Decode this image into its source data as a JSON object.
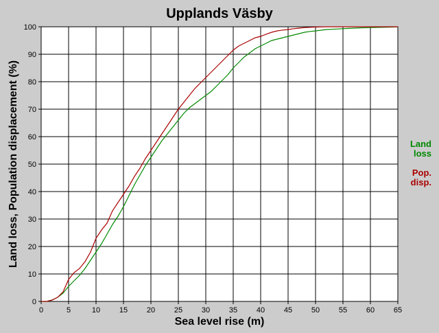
{
  "chart_data": {
    "type": "line",
    "title": "Upplands Väsby",
    "xlabel": "Sea level rise (m)",
    "ylabel": "Land loss, Population displacement (%)",
    "xlim": [
      0,
      65
    ],
    "ylim": [
      0,
      100
    ],
    "xticks": [
      0,
      5,
      10,
      15,
      20,
      25,
      30,
      35,
      40,
      45,
      50,
      55,
      60,
      65
    ],
    "yticks": [
      0,
      10,
      20,
      30,
      40,
      50,
      60,
      70,
      80,
      90,
      100
    ],
    "grid": true,
    "legend_position": "right",
    "series": [
      {
        "name": "Land loss",
        "legend_lines": [
          "Land",
          "loss"
        ],
        "color": "#008800",
        "x": [
          0,
          1,
          2,
          3,
          4,
          5,
          6,
          7,
          8,
          9,
          10,
          11,
          12,
          13,
          14,
          15,
          16,
          17,
          18,
          19,
          20,
          21,
          22,
          23,
          24,
          25,
          26,
          27,
          28,
          29,
          30,
          31,
          32,
          33,
          34,
          35,
          36,
          37,
          38,
          39,
          40,
          41,
          42,
          43,
          44,
          45,
          46,
          47,
          48,
          49,
          50,
          52,
          54,
          56,
          58,
          60,
          62,
          64,
          65
        ],
        "y": [
          0,
          0,
          0.5,
          1.5,
          3,
          5.5,
          7.5,
          9.5,
          12,
          15,
          18,
          21,
          24.5,
          28,
          31,
          34.5,
          38.5,
          42.5,
          46,
          49.5,
          52.5,
          55.5,
          58.5,
          61,
          63.5,
          66,
          68.5,
          70.5,
          72,
          73.5,
          75,
          76.5,
          78.5,
          80.5,
          82.5,
          85,
          87,
          89,
          90.5,
          92,
          93,
          94,
          95,
          95.5,
          96,
          96.5,
          97,
          97.5,
          98,
          98.3,
          98.5,
          99,
          99.2,
          99.4,
          99.6,
          99.7,
          99.8,
          99.9,
          100
        ]
      },
      {
        "name": "Pop. disp.",
        "legend_lines": [
          "Pop.",
          "disp."
        ],
        "color": "#aa0000",
        "x": [
          0,
          1,
          2,
          3,
          4,
          5,
          6,
          7,
          8,
          9,
          10,
          11,
          12,
          13,
          14,
          15,
          16,
          17,
          18,
          19,
          20,
          21,
          22,
          23,
          24,
          25,
          26,
          27,
          28,
          29,
          30,
          31,
          32,
          33,
          34,
          35,
          36,
          37,
          38,
          39,
          40,
          41,
          42,
          43,
          44,
          45,
          46,
          47,
          48,
          49,
          50,
          52,
          54,
          56,
          58,
          60,
          62,
          64,
          65
        ],
        "y": [
          0,
          0,
          0.5,
          1.5,
          3.5,
          8,
          10.5,
          12,
          14.5,
          18,
          23,
          26,
          28.5,
          33,
          36,
          39,
          42,
          45.5,
          48.5,
          52,
          55,
          58,
          61,
          64,
          67,
          70,
          72.5,
          75,
          77.5,
          79.5,
          81.5,
          83.5,
          85.5,
          87.5,
          89.5,
          91.5,
          93,
          94,
          95,
          96,
          96.5,
          97.3,
          98,
          98.5,
          98.8,
          99,
          99.3,
          99.5,
          99.7,
          99.8,
          99.9,
          100,
          100,
          100,
          100,
          100,
          100,
          100,
          100
        ]
      }
    ]
  }
}
